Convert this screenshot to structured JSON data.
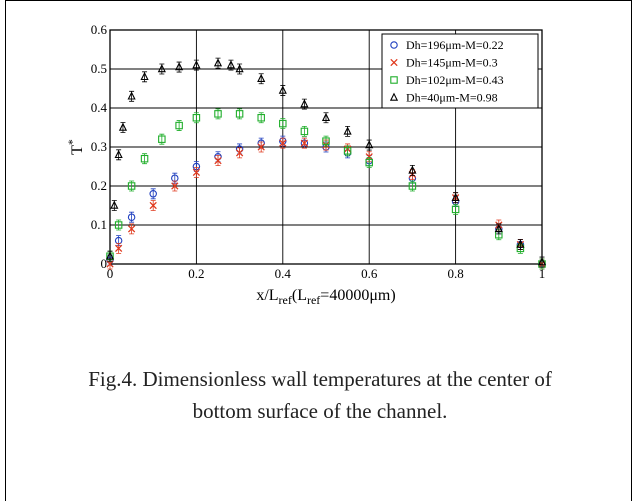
{
  "caption": {
    "line1": "Fig.4. Dimensionless wall temperatures at the center of",
    "line2": "bottom surface of the channel."
  },
  "chart_data": {
    "type": "scatter",
    "xlim": [
      0,
      1
    ],
    "ylim": [
      0,
      0.6
    ],
    "xticks": [
      "0",
      "0.2",
      "0.4",
      "0.6",
      "0.8",
      "1"
    ],
    "yticks": [
      "0",
      "0.1",
      "0.2",
      "0.3",
      "0.4",
      "0.5",
      "0.6"
    ],
    "xlabel": {
      "main": "x/L",
      "sub1": "ref",
      "mid": "(L",
      "sub2": "ref",
      "tail": "=40000μm)"
    },
    "ylabel": {
      "main": "T",
      "sup": "*"
    },
    "grid": true,
    "legend_position": "top-right",
    "error_bars": true,
    "series": [
      {
        "name": "Dh=196μm-M=0.22",
        "marker": "circle",
        "color": "#1f3fbf",
        "x": [
          0,
          0.02,
          0.05,
          0.1,
          0.15,
          0.2,
          0.25,
          0.3,
          0.35,
          0.4,
          0.45,
          0.5,
          0.55,
          0.6,
          0.7,
          0.8,
          0.9,
          0.95,
          1.0
        ],
        "y": [
          0.01,
          0.06,
          0.12,
          0.18,
          0.22,
          0.25,
          0.275,
          0.295,
          0.31,
          0.315,
          0.31,
          0.3,
          0.285,
          0.265,
          0.22,
          0.16,
          0.09,
          0.05,
          0.0
        ]
      },
      {
        "name": "Dh=145μm-M=0.3",
        "marker": "x",
        "color": "#e03a1e",
        "x": [
          0,
          0.02,
          0.05,
          0.1,
          0.15,
          0.2,
          0.25,
          0.3,
          0.35,
          0.4,
          0.45,
          0.5,
          0.55,
          0.6,
          0.7,
          0.8,
          0.9,
          0.95,
          1.0
        ],
        "y": [
          0.0,
          0.04,
          0.09,
          0.15,
          0.2,
          0.235,
          0.265,
          0.285,
          0.3,
          0.31,
          0.31,
          0.305,
          0.295,
          0.275,
          0.23,
          0.17,
          0.1,
          0.05,
          0.0
        ]
      },
      {
        "name": "Dh=102μm-M=0.43",
        "marker": "square",
        "color": "#1fae2a",
        "x": [
          0,
          0.02,
          0.05,
          0.08,
          0.12,
          0.16,
          0.2,
          0.25,
          0.3,
          0.35,
          0.4,
          0.45,
          0.5,
          0.55,
          0.6,
          0.7,
          0.8,
          0.9,
          0.95,
          1.0
        ],
        "y": [
          0.02,
          0.1,
          0.2,
          0.27,
          0.32,
          0.355,
          0.375,
          0.385,
          0.385,
          0.375,
          0.36,
          0.34,
          0.315,
          0.29,
          0.26,
          0.2,
          0.14,
          0.075,
          0.04,
          0.0
        ]
      },
      {
        "name": "Dh=40μm-M=0.98",
        "marker": "triangle",
        "color": "#000000",
        "x": [
          0,
          0.01,
          0.02,
          0.03,
          0.05,
          0.08,
          0.12,
          0.16,
          0.2,
          0.25,
          0.28,
          0.3,
          0.35,
          0.4,
          0.45,
          0.5,
          0.55,
          0.6,
          0.7,
          0.8,
          0.9,
          0.95,
          1.0
        ],
        "y": [
          0.02,
          0.15,
          0.28,
          0.35,
          0.43,
          0.48,
          0.5,
          0.505,
          0.51,
          0.515,
          0.51,
          0.5,
          0.475,
          0.445,
          0.41,
          0.375,
          0.34,
          0.305,
          0.24,
          0.17,
          0.09,
          0.05,
          0.005
        ]
      }
    ]
  }
}
